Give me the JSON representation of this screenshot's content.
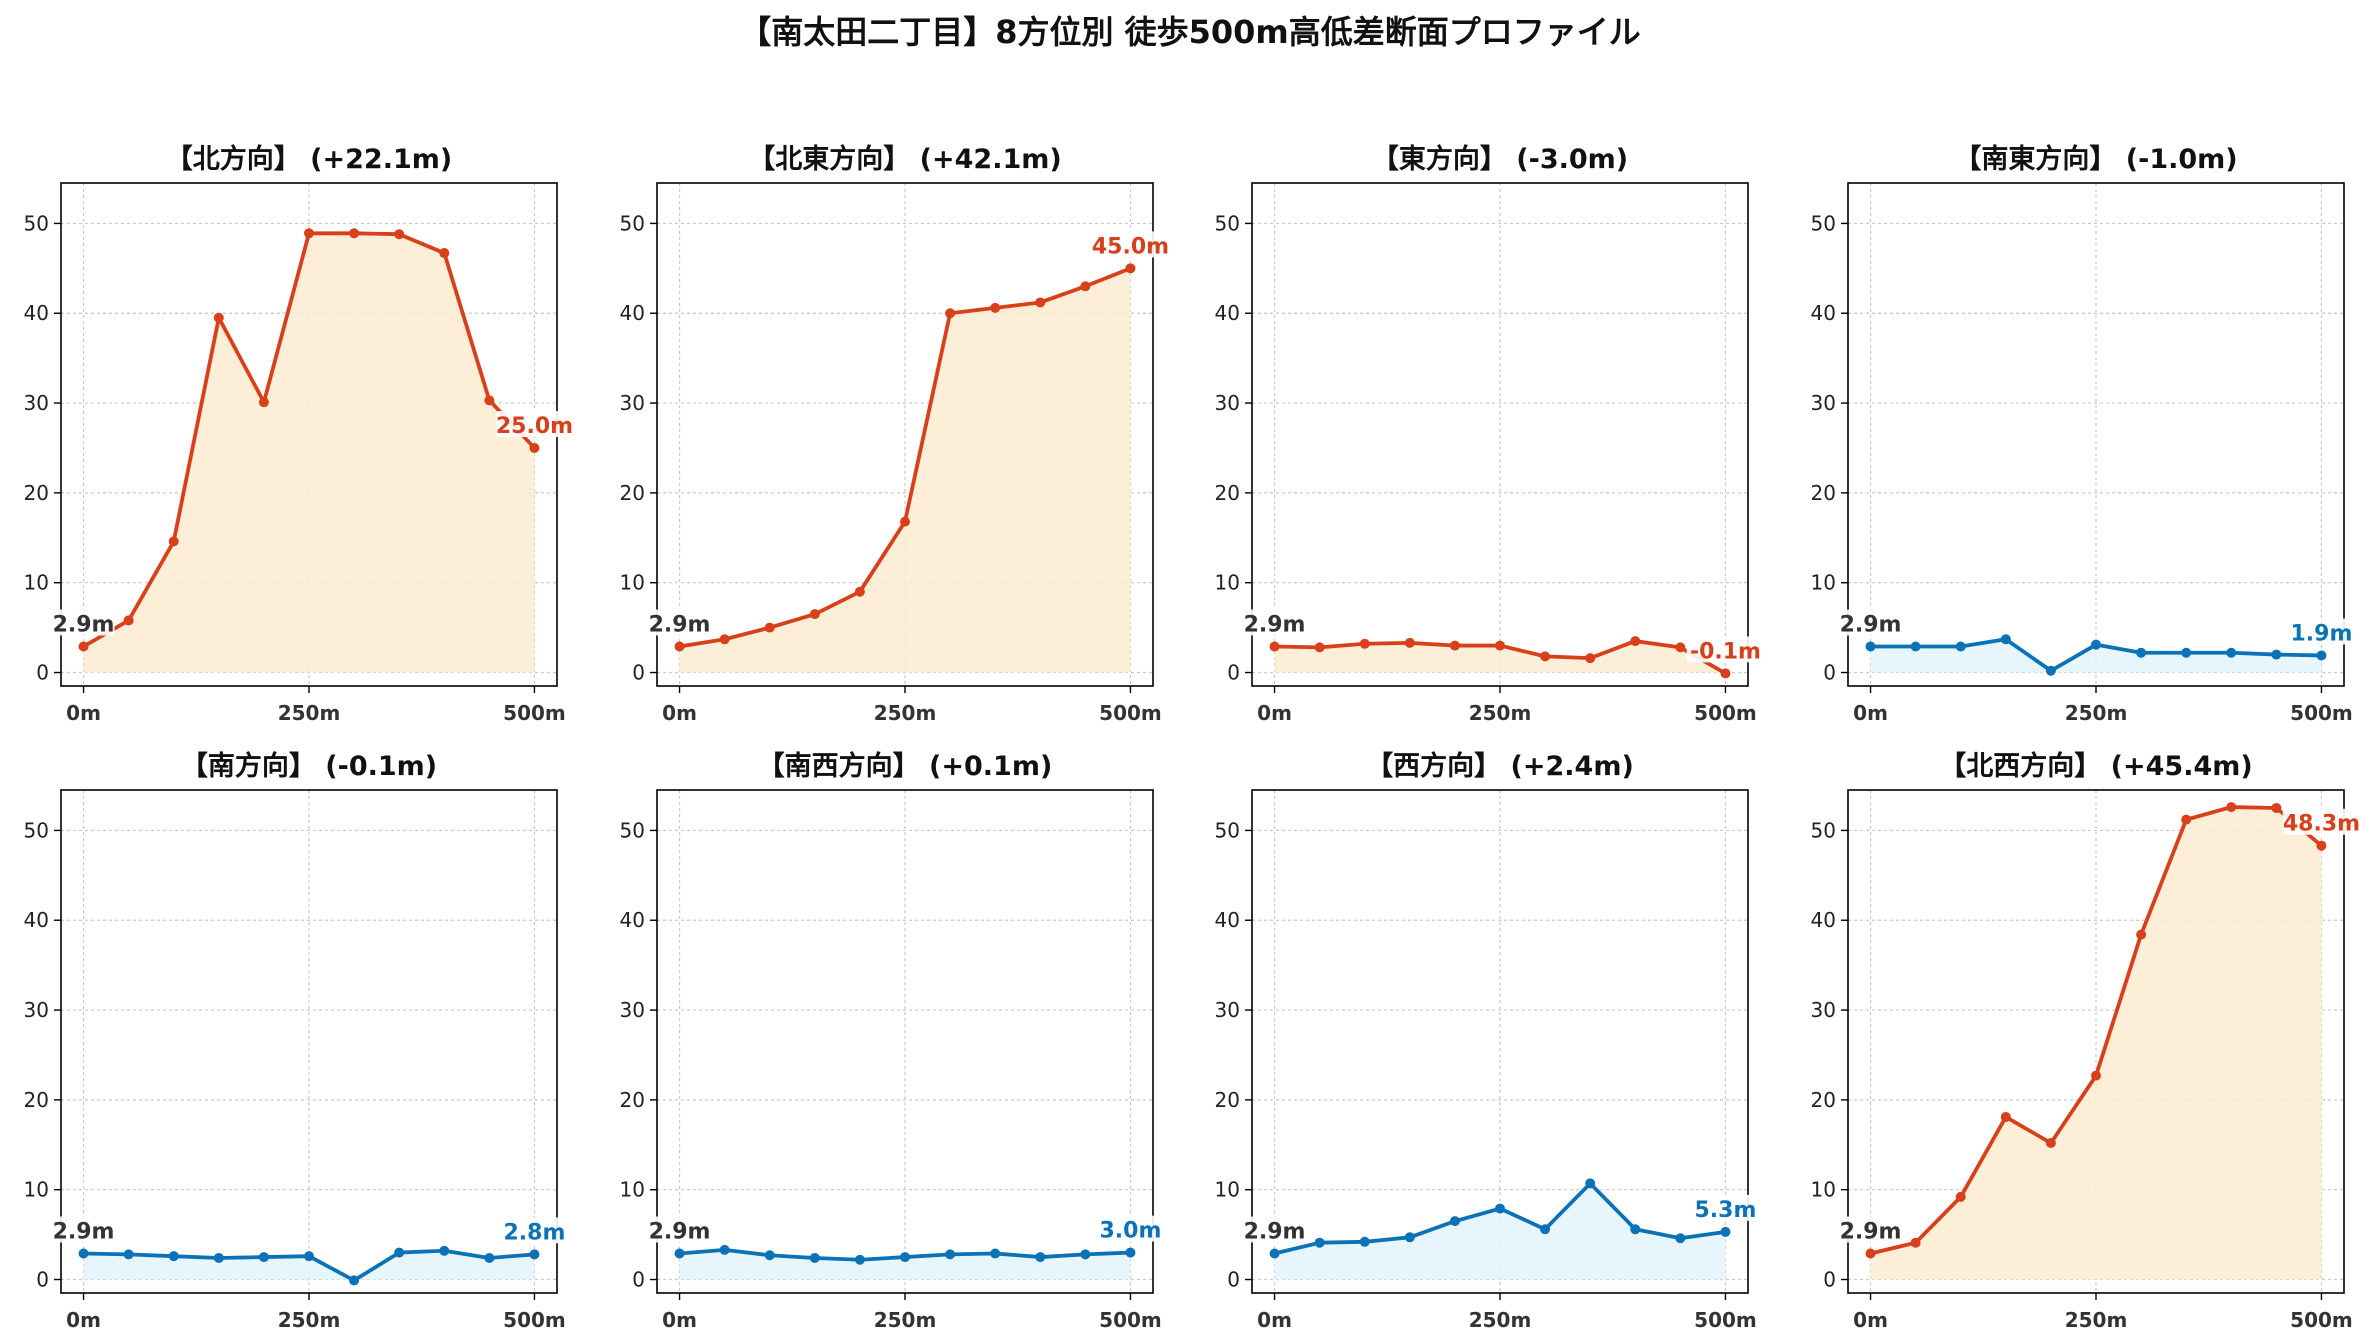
{
  "figure": {
    "title": "【南太田二丁目】8方位別 徒歩500m高低差断面プロファイル"
  },
  "colors": {
    "up_line": "#d7401a",
    "up_fill": "#fdebd0",
    "down_line": "#0b72b8",
    "down_fill": "#e3f4fb",
    "start_label": "#333333",
    "grid": "#c8c8c8"
  },
  "chart_data": [
    {
      "type": "area",
      "title": "【北方向】 (+22.1m)",
      "x": [
        0,
        50,
        100,
        150,
        200,
        250,
        300,
        350,
        400,
        450,
        500
      ],
      "values": [
        2.9,
        5.8,
        14.6,
        39.5,
        30.1,
        48.9,
        48.9,
        48.8,
        46.7,
        30.3,
        25.0
      ],
      "start_label": "2.9m",
      "end_label": "25.0m",
      "trend": "up",
      "xticks": [
        "0m",
        "250m",
        "500m"
      ],
      "yticks": [
        0,
        10,
        20,
        30,
        40,
        50
      ],
      "xlim": [
        -25,
        525
      ],
      "ylim": [
        -1.5,
        54.5
      ],
      "grid": true
    },
    {
      "type": "area",
      "title": "【北東方向】 (+42.1m)",
      "x": [
        0,
        50,
        100,
        150,
        200,
        250,
        300,
        350,
        400,
        450,
        500
      ],
      "values": [
        2.9,
        3.7,
        5.0,
        6.5,
        9.0,
        16.8,
        40.0,
        40.6,
        41.2,
        43.0,
        45.0
      ],
      "start_label": "2.9m",
      "end_label": "45.0m",
      "trend": "up",
      "xticks": [
        "0m",
        "250m",
        "500m"
      ],
      "yticks": [
        0,
        10,
        20,
        30,
        40,
        50
      ],
      "xlim": [
        -25,
        525
      ],
      "ylim": [
        -1.5,
        54.5
      ],
      "grid": true
    },
    {
      "type": "area",
      "title": "【東方向】 (-3.0m)",
      "x": [
        0,
        50,
        100,
        150,
        200,
        250,
        300,
        350,
        400,
        450,
        500
      ],
      "values": [
        2.9,
        2.8,
        3.2,
        3.3,
        3.0,
        3.0,
        1.8,
        1.6,
        3.5,
        2.8,
        -0.1
      ],
      "start_label": "2.9m",
      "end_label": "-0.1m",
      "trend": "up",
      "xticks": [
        "0m",
        "250m",
        "500m"
      ],
      "yticks": [
        0,
        10,
        20,
        30,
        40,
        50
      ],
      "xlim": [
        -25,
        525
      ],
      "ylim": [
        -1.5,
        54.5
      ],
      "grid": true
    },
    {
      "type": "area",
      "title": "【南東方向】 (-1.0m)",
      "x": [
        0,
        50,
        100,
        150,
        200,
        250,
        300,
        350,
        400,
        450,
        500
      ],
      "values": [
        2.9,
        2.9,
        2.9,
        3.7,
        0.2,
        3.1,
        2.2,
        2.2,
        2.2,
        2.0,
        1.9
      ],
      "start_label": "2.9m",
      "end_label": "1.9m",
      "trend": "down",
      "xticks": [
        "0m",
        "250m",
        "500m"
      ],
      "yticks": [
        0,
        10,
        20,
        30,
        40,
        50
      ],
      "xlim": [
        -25,
        525
      ],
      "ylim": [
        -1.5,
        54.5
      ],
      "grid": true
    },
    {
      "type": "area",
      "title": "【南方向】 (-0.1m)",
      "x": [
        0,
        50,
        100,
        150,
        200,
        250,
        300,
        350,
        400,
        450,
        500
      ],
      "values": [
        2.9,
        2.8,
        2.6,
        2.4,
        2.5,
        2.6,
        -0.1,
        3.0,
        3.2,
        2.4,
        2.8
      ],
      "start_label": "2.9m",
      "end_label": "2.8m",
      "trend": "down",
      "xticks": [
        "0m",
        "250m",
        "500m"
      ],
      "yticks": [
        0,
        10,
        20,
        30,
        40,
        50
      ],
      "xlim": [
        -25,
        525
      ],
      "ylim": [
        -1.5,
        54.5
      ],
      "grid": true
    },
    {
      "type": "area",
      "title": "【南西方向】 (+0.1m)",
      "x": [
        0,
        50,
        100,
        150,
        200,
        250,
        300,
        350,
        400,
        450,
        500
      ],
      "values": [
        2.9,
        3.3,
        2.7,
        2.4,
        2.2,
        2.5,
        2.8,
        2.9,
        2.5,
        2.8,
        3.0
      ],
      "start_label": "2.9m",
      "end_label": "3.0m",
      "trend": "down",
      "xticks": [
        "0m",
        "250m",
        "500m"
      ],
      "yticks": [
        0,
        10,
        20,
        30,
        40,
        50
      ],
      "xlim": [
        -25,
        525
      ],
      "ylim": [
        -1.5,
        54.5
      ],
      "grid": true
    },
    {
      "type": "area",
      "title": "【西方向】 (+2.4m)",
      "x": [
        0,
        50,
        100,
        150,
        200,
        250,
        300,
        350,
        400,
        450,
        500
      ],
      "values": [
        2.9,
        4.1,
        4.2,
        4.7,
        6.5,
        7.9,
        5.6,
        10.7,
        5.6,
        4.6,
        5.3
      ],
      "start_label": "2.9m",
      "end_label": "5.3m",
      "trend": "down",
      "xticks": [
        "0m",
        "250m",
        "500m"
      ],
      "yticks": [
        0,
        10,
        20,
        30,
        40,
        50
      ],
      "xlim": [
        -25,
        525
      ],
      "ylim": [
        -1.5,
        54.5
      ],
      "grid": true
    },
    {
      "type": "area",
      "title": "【北西方向】 (+45.4m)",
      "x": [
        0,
        50,
        100,
        150,
        200,
        250,
        300,
        350,
        400,
        450,
        500
      ],
      "values": [
        2.9,
        4.1,
        9.2,
        18.1,
        15.2,
        22.7,
        38.4,
        51.2,
        52.6,
        52.5,
        48.3
      ],
      "start_label": "2.9m",
      "end_label": "48.3m",
      "trend": "up",
      "xticks": [
        "0m",
        "250m",
        "500m"
      ],
      "yticks": [
        0,
        10,
        20,
        30,
        40,
        50
      ],
      "xlim": [
        -25,
        525
      ],
      "ylim": [
        -1.5,
        54.5
      ],
      "grid": true
    }
  ]
}
